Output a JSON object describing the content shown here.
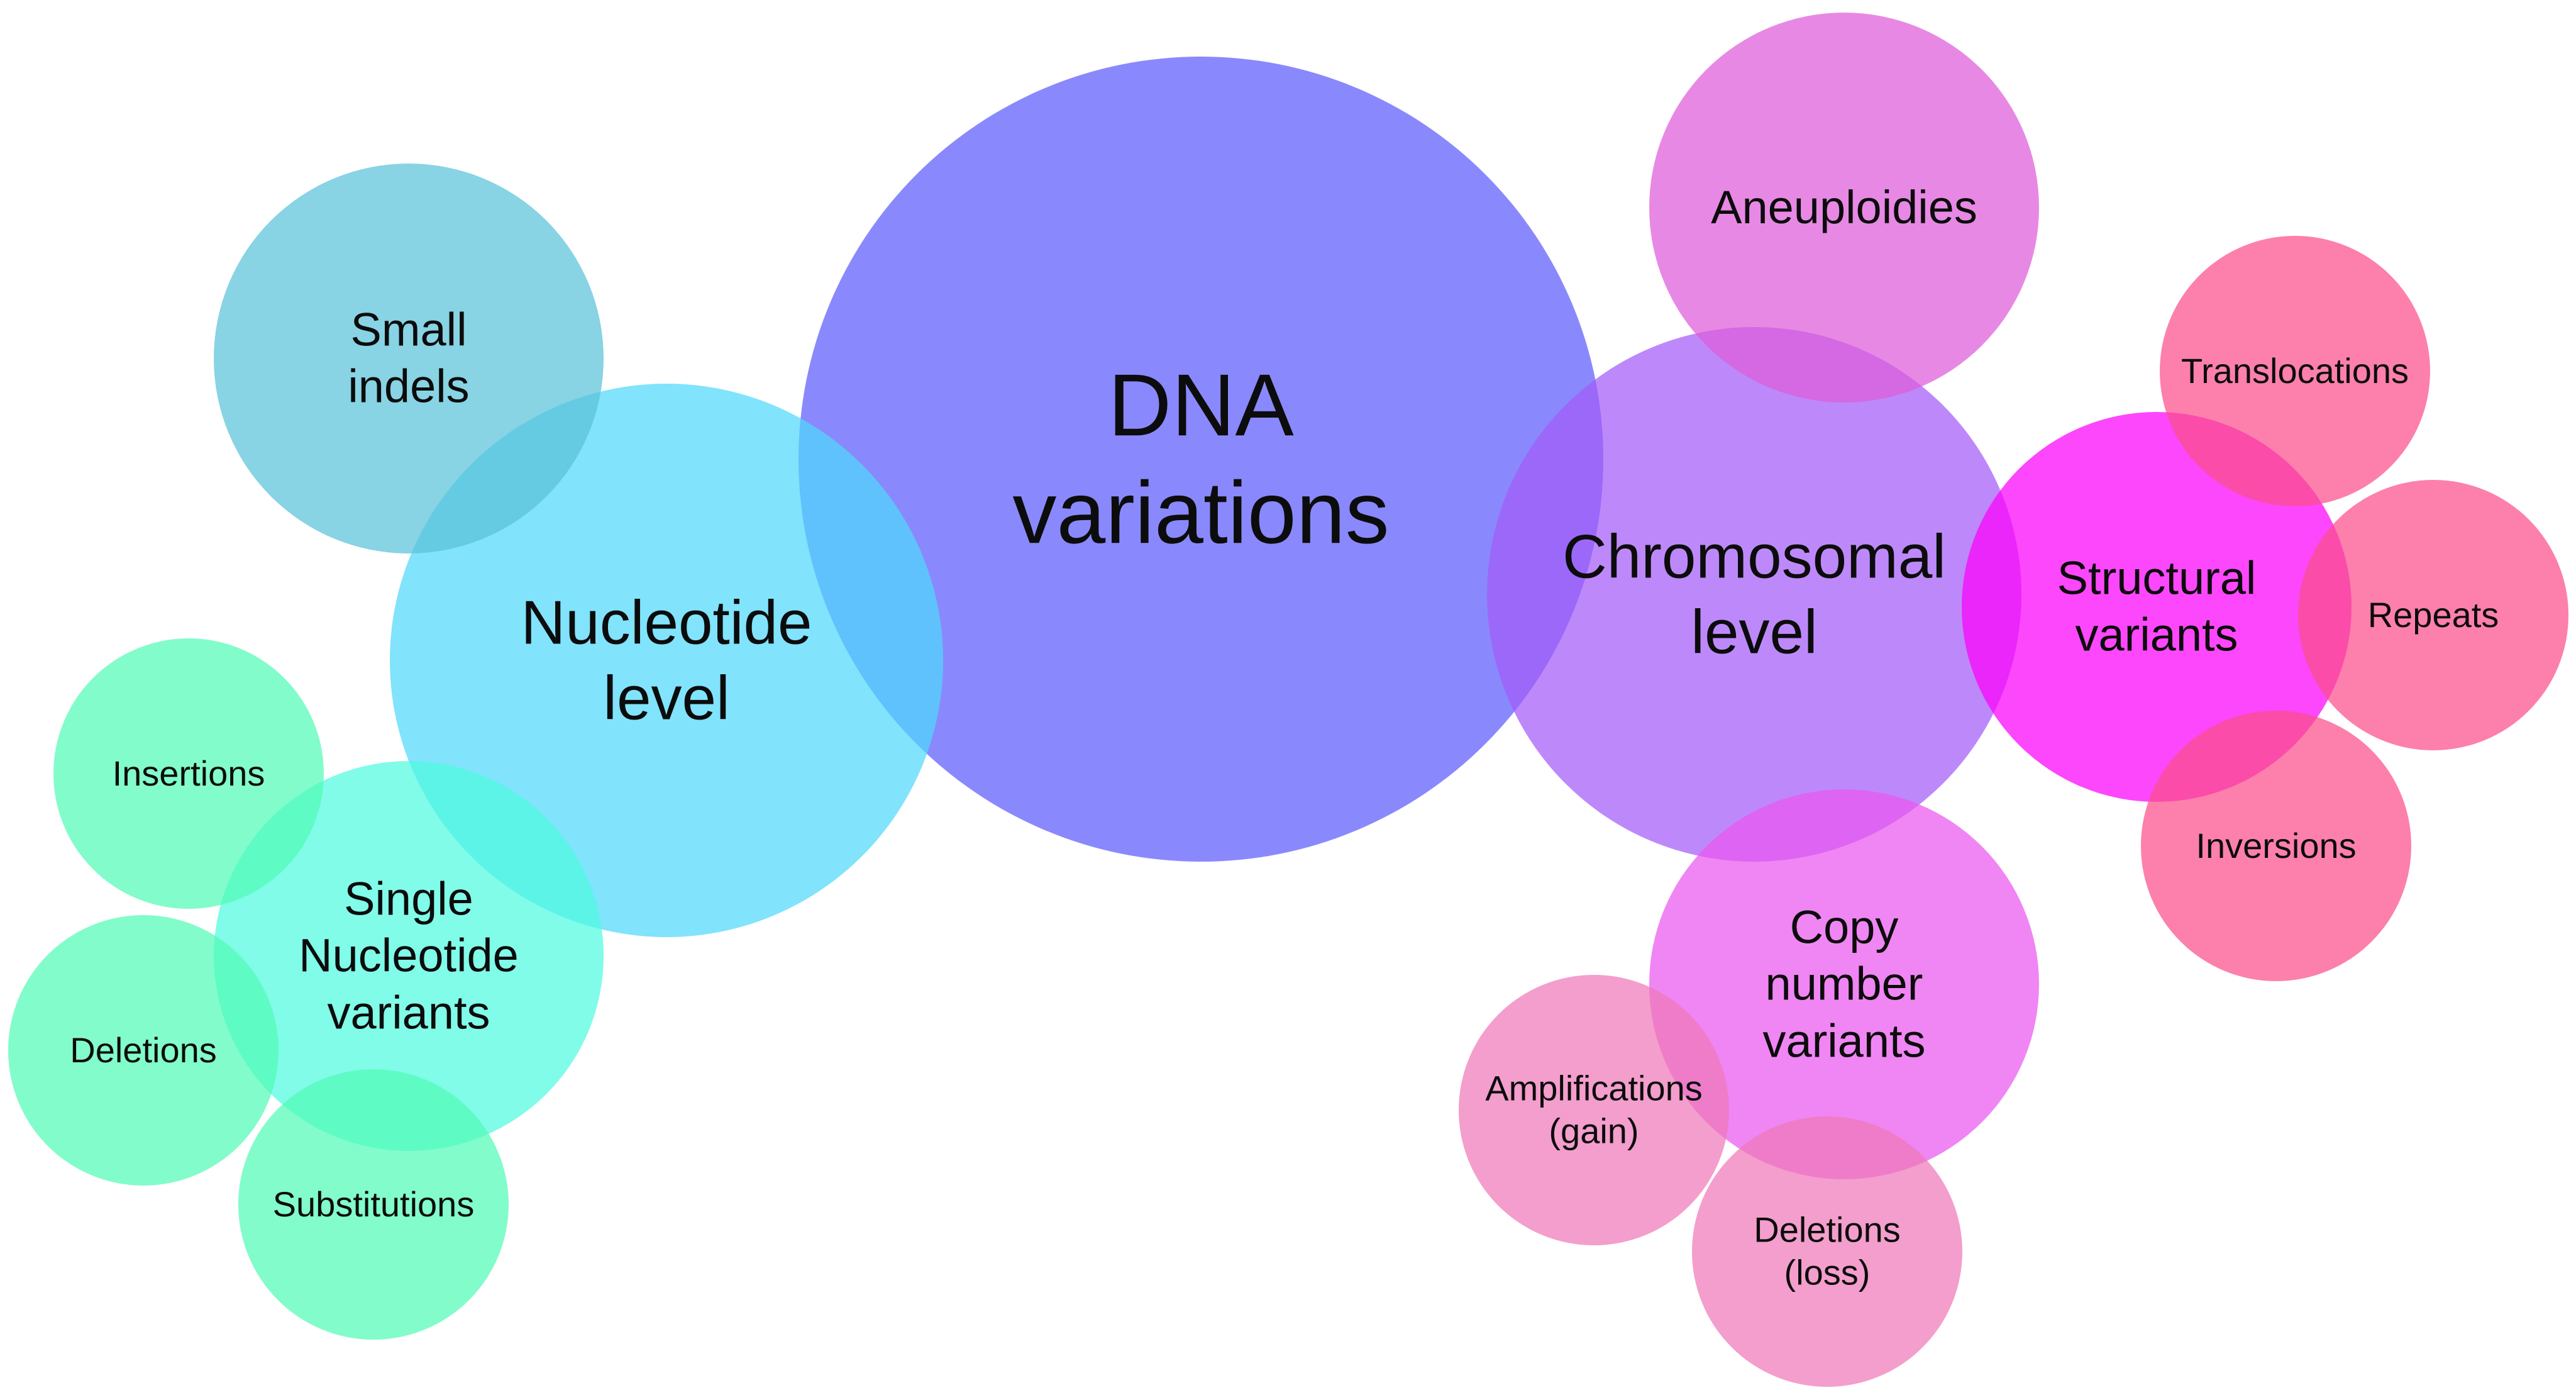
{
  "nodes": [
    {
      "id": "dna",
      "lines": [
        "DNA",
        "variations"
      ],
      "color": "#5c5cfc"
    },
    {
      "id": "nucleotide",
      "lines": [
        "Nucleotide",
        "level"
      ],
      "color": "#50d8fb"
    },
    {
      "id": "small-indels",
      "lines": [
        "Small",
        "indels"
      ],
      "color": "#5ac2da"
    },
    {
      "id": "snv",
      "lines": [
        "Single",
        "Nucleotide",
        "variants"
      ],
      "color": "#4ffbe1"
    },
    {
      "id": "insertions",
      "lines": [
        "Insertions"
      ],
      "color": "#52fbb6"
    },
    {
      "id": "deletions",
      "lines": [
        "Deletions"
      ],
      "color": "#52fbb6"
    },
    {
      "id": "substitutions",
      "lines": [
        "Substitutions"
      ],
      "color": "#52fbb6"
    },
    {
      "id": "chromosomal",
      "lines": [
        "Chromosomal",
        "level"
      ],
      "color": "#a45cf8"
    },
    {
      "id": "aneuploidies",
      "lines": [
        "Aneuploidies"
      ],
      "color": "#de5cda"
    },
    {
      "id": "structural",
      "lines": [
        "Structural",
        "variants"
      ],
      "color": "#fb00fb"
    },
    {
      "id": "translocations",
      "lines": [
        "Translocations"
      ],
      "color": "#fb4f8a"
    },
    {
      "id": "repeats",
      "lines": [
        "Repeats"
      ],
      "color": "#fb4f8a"
    },
    {
      "id": "inversions",
      "lines": [
        "Inversions"
      ],
      "color": "#fb4f8a"
    },
    {
      "id": "cnv",
      "lines": [
        "Copy",
        "number",
        "variants"
      ],
      "color": "#ea58f0"
    },
    {
      "id": "amplifications",
      "lines": [
        "Amplifications",
        "(gain)"
      ],
      "color": "#ee78b8"
    },
    {
      "id": "deletions-loss",
      "lines": [
        "Deletions",
        "(loss)"
      ],
      "color": "#ee78b8"
    }
  ]
}
